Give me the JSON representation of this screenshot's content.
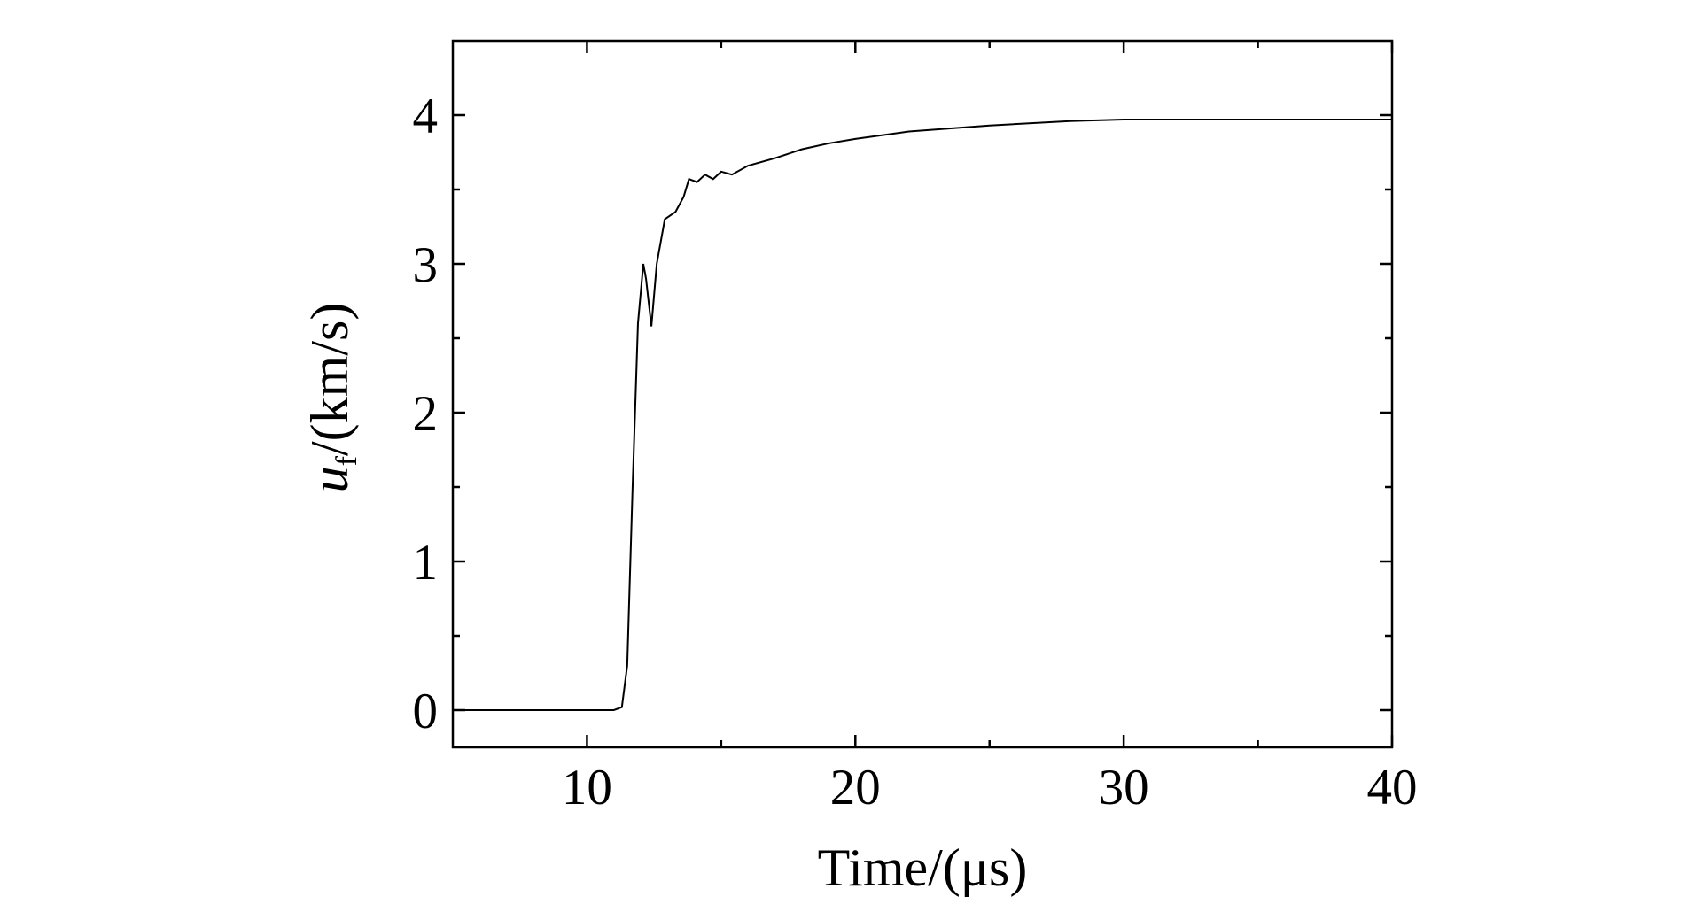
{
  "chart_data": {
    "type": "line",
    "x_label": "Time/(μs)",
    "y_label": {
      "symbol": "u",
      "subscript": "f",
      "unit": "/(km/s)"
    },
    "xlim": [
      5,
      40
    ],
    "xticks": [
      10,
      20,
      30,
      40
    ],
    "xminor_ticks": [
      15,
      25,
      35
    ],
    "ylim": [
      -0.25,
      4.5
    ],
    "yticks": [
      0,
      1,
      2,
      3,
      4
    ],
    "yminor_ticks": [
      0.5,
      1.5,
      2.5,
      3.5
    ],
    "grid": false,
    "series": [
      {
        "color": "#000000",
        "x": [
          5.2,
          11,
          11.3,
          11.5,
          11.7,
          11.9,
          12.1,
          12.2,
          12.4,
          12.6,
          12.9,
          13.3,
          13.6,
          13.8,
          14.1,
          14.4,
          14.7,
          15,
          15.4,
          16,
          17,
          18,
          19,
          20,
          22,
          25,
          28,
          30,
          35,
          40
        ],
        "values": [
          0,
          0,
          0.02,
          0.3,
          1.5,
          2.6,
          3.0,
          2.9,
          2.58,
          3.0,
          3.3,
          3.35,
          3.45,
          3.57,
          3.55,
          3.6,
          3.57,
          3.62,
          3.6,
          3.66,
          3.71,
          3.77,
          3.81,
          3.84,
          3.89,
          3.93,
          3.96,
          3.97,
          3.97,
          3.97
        ]
      }
    ]
  }
}
